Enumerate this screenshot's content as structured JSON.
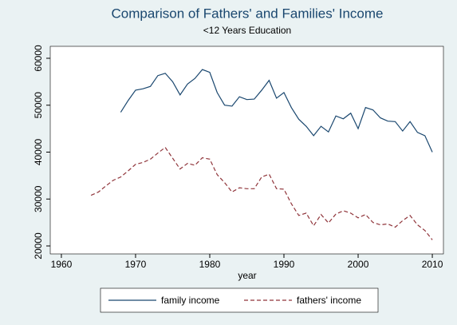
{
  "chart_data": {
    "type": "line",
    "title": "Comparison of Fathers' and Families' Income",
    "subtitle": "<12 Years Education",
    "x_label": "year",
    "xlim": [
      1958.5,
      2011.5
    ],
    "xticks": [
      1960,
      1970,
      1980,
      1990,
      2000,
      2010
    ],
    "ylim": [
      18300,
      62550
    ],
    "yticks": [
      20000,
      30000,
      40000,
      50000,
      60000
    ],
    "grid": false,
    "legend": "bottom",
    "series": [
      {
        "name": "family income",
        "color": "#1a476f",
        "dash": false,
        "x": [
          1968,
          1969,
          1970,
          1971,
          1972,
          1973,
          1974,
          1975,
          1976,
          1977,
          1978,
          1979,
          1980,
          1981,
          1982,
          1983,
          1984,
          1985,
          1986,
          1987,
          1988,
          1989,
          1990,
          1991,
          1992,
          1993,
          1994,
          1995,
          1996,
          1997,
          1998,
          1999,
          2000,
          2001,
          2002,
          2003,
          2004,
          2005,
          2006,
          2007,
          2008,
          2009,
          2010
        ],
        "values": [
          48500,
          51000,
          53200,
          53500,
          54000,
          56300,
          56800,
          55000,
          52200,
          54500,
          55700,
          57600,
          57000,
          52700,
          50000,
          49800,
          51800,
          51200,
          51300,
          53200,
          55300,
          51500,
          52700,
          49500,
          47000,
          45500,
          43500,
          45500,
          44300,
          47700,
          47100,
          48300,
          45000,
          49500,
          49000,
          47300,
          46600,
          46500,
          44500,
          46500,
          44200,
          43500,
          40000
        ]
      },
      {
        "name": "fathers' income",
        "color": "#90353b",
        "dash": true,
        "x": [
          1964,
          1965,
          1966,
          1967,
          1968,
          1969,
          1970,
          1971,
          1972,
          1973,
          1974,
          1975,
          1976,
          1977,
          1978,
          1979,
          1980,
          1981,
          1982,
          1983,
          1984,
          1985,
          1986,
          1987,
          1988,
          1989,
          1990,
          1991,
          1992,
          1993,
          1994,
          1995,
          1996,
          1997,
          1998,
          1999,
          2000,
          2001,
          2002,
          2003,
          2004,
          2005,
          2006,
          2007,
          2008,
          2009,
          2010
        ],
        "values": [
          30800,
          31500,
          32800,
          34000,
          34700,
          36000,
          37400,
          37800,
          38500,
          39800,
          41000,
          38700,
          36400,
          37600,
          37200,
          38800,
          38500,
          35200,
          33500,
          31500,
          32400,
          32200,
          32200,
          34700,
          35300,
          32200,
          32100,
          29000,
          26500,
          27000,
          24300,
          26700,
          24900,
          26800,
          27500,
          27000,
          26000,
          26700,
          25000,
          24500,
          24700,
          24000,
          25400,
          26500,
          24500,
          23300,
          21300
        ]
      }
    ]
  }
}
